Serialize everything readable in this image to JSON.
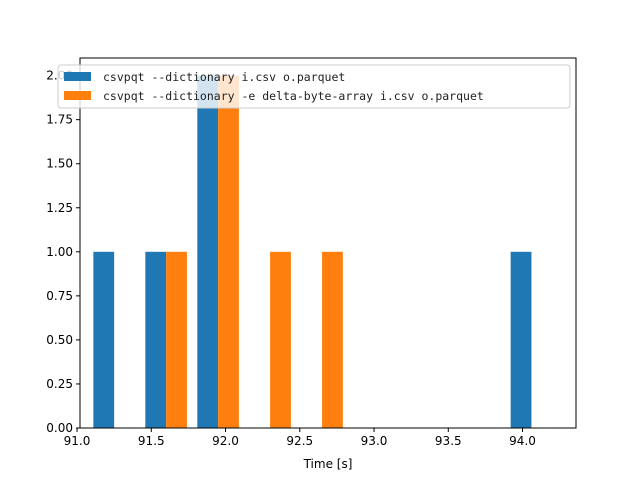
{
  "chart_data": {
    "type": "bar",
    "title": "",
    "xlabel": "Time [s]",
    "ylabel": "",
    "xlim": [
      91.02,
      94.36
    ],
    "ylim": [
      0,
      2.1
    ],
    "grid": false,
    "legend_position": "top-left",
    "x_ticks": [
      91.0,
      91.5,
      92.0,
      92.5,
      93.0,
      93.5,
      94.0
    ],
    "x_tick_labels": [
      "91.0",
      "91.5",
      "92.0",
      "92.5",
      "93.0",
      "93.5",
      "94.0"
    ],
    "y_ticks": [
      0,
      0.25,
      0.5,
      0.75,
      1.0,
      1.25,
      1.5,
      1.75,
      2.0
    ],
    "y_tick_labels": [
      "0.00",
      "0.25",
      "0.50",
      "0.75",
      "1.00",
      "1.25",
      "1.50",
      "1.75",
      "2.00"
    ],
    "series": [
      {
        "name": "csvpqt --dictionary i.csv o.parquet",
        "color": "#1f77b4",
        "bars": [
          {
            "x0": 91.11,
            "x1": 91.25,
            "value": 1
          },
          {
            "x0": 91.46,
            "x1": 91.6,
            "value": 1
          },
          {
            "x0": 91.81,
            "x1": 91.95,
            "value": 2
          },
          {
            "x0": 93.92,
            "x1": 94.06,
            "value": 1
          }
        ]
      },
      {
        "name": "csvpqt --dictionary -e delta-byte-array i.csv o.parquet",
        "color": "#ff7f0e",
        "bars": [
          {
            "x0": 91.6,
            "x1": 91.74,
            "value": 1
          },
          {
            "x0": 91.95,
            "x1": 92.09,
            "value": 2
          },
          {
            "x0": 92.3,
            "x1": 92.44,
            "value": 1
          },
          {
            "x0": 92.65,
            "x1": 92.79,
            "value": 1
          }
        ]
      }
    ]
  }
}
